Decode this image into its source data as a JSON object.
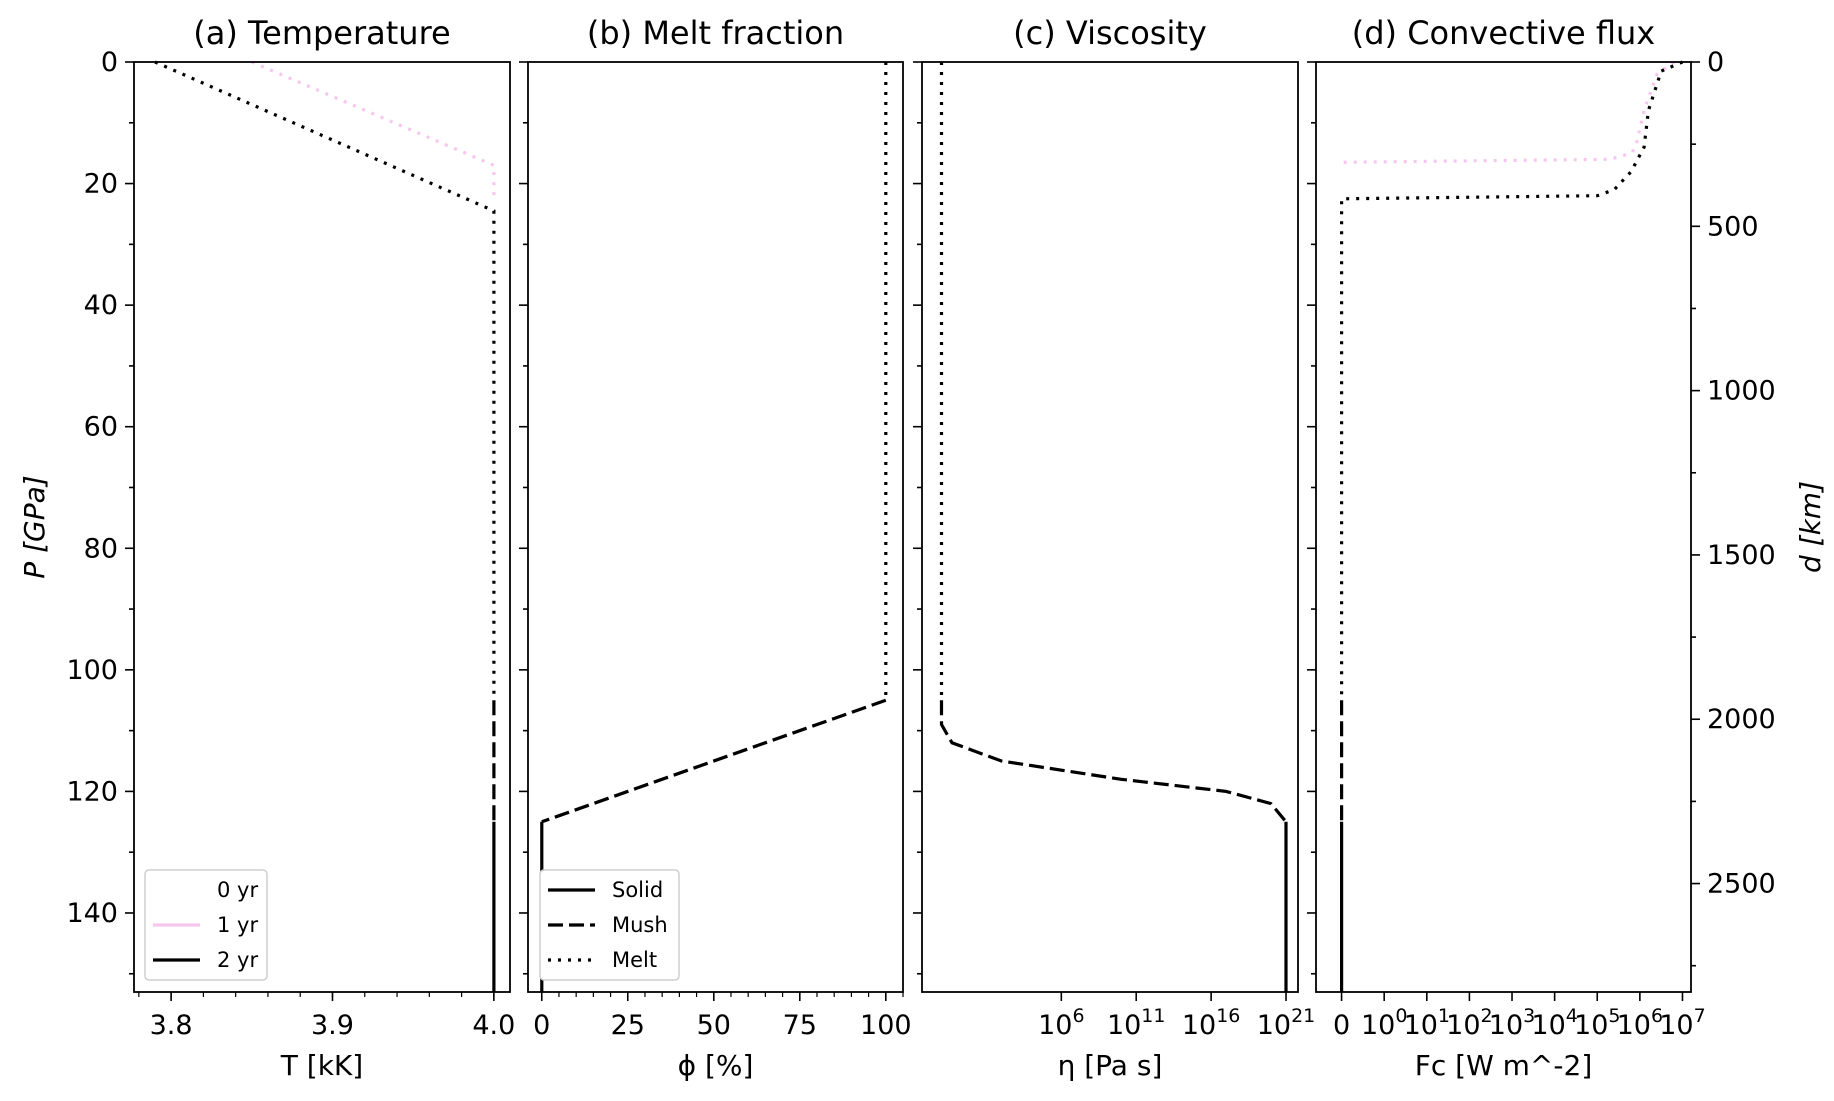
{
  "figure": {
    "left_ylabel": "P [GPa]",
    "right_ylabel": "d [km]"
  },
  "legend_time": [
    "0 yr",
    "1 yr",
    "2 yr"
  ],
  "legend_phase": [
    "Solid",
    "Mush",
    "Melt"
  ],
  "colors": {
    "t0": "#ffffff",
    "t1": "#f7c6ef",
    "t2": "#000000"
  },
  "chart_data": [
    {
      "type": "line",
      "title": "(a) Temperature",
      "xlabel": "T [kK]",
      "ylabel": "P [GPa]",
      "xlim": [
        3.777,
        4.01
      ],
      "ylim": [
        153,
        0
      ],
      "xticks": [
        3.8,
        3.9,
        4.0
      ],
      "xtick_labels": [
        "3.8",
        "3.9",
        "4.0"
      ],
      "yticks": [
        0,
        20,
        40,
        60,
        80,
        100,
        120,
        140
      ],
      "ytick_labels": [
        "0",
        "20",
        "40",
        "60",
        "80",
        "100",
        "120",
        "140"
      ],
      "legend_placement": "lower-left",
      "series": [
        {
          "name": "1 yr",
          "color": "#f7c6ef",
          "segments": [
            {
              "phase": "melt",
              "points": [
                [
                  3.85,
                  0
                ],
                [
                  4.0,
                  17
                ],
                [
                  4.0,
                  23
                ]
              ]
            }
          ]
        },
        {
          "name": "2 yr",
          "color": "#000000",
          "segments": [
            {
              "phase": "melt",
              "points": [
                [
                  3.79,
                  0
                ],
                [
                  4.0,
                  24.5
                ],
                [
                  4.0,
                  105
                ]
              ]
            },
            {
              "phase": "mush",
              "points": [
                [
                  4.0,
                  105
                ],
                [
                  4.0,
                  125
                ]
              ]
            },
            {
              "phase": "solid",
              "points": [
                [
                  4.0,
                  125
                ],
                [
                  4.0,
                  153
                ]
              ]
            }
          ]
        }
      ]
    },
    {
      "type": "line",
      "title": "(b) Melt fraction",
      "xlabel": "ϕ [%]",
      "xlim": [
        -4,
        105
      ],
      "ylim": [
        153,
        0
      ],
      "xticks": [
        0,
        25,
        50,
        75,
        100
      ],
      "xtick_labels": [
        "0",
        "25",
        "50",
        "75",
        "100"
      ],
      "legend_placement": "lower-left",
      "series": [
        {
          "name": "2 yr",
          "color": "#000000",
          "segments": [
            {
              "phase": "melt",
              "points": [
                [
                  100,
                  0
                ],
                [
                  100,
                  105
                ]
              ]
            },
            {
              "phase": "mush",
              "points": [
                [
                  100,
                  105
                ],
                [
                  0,
                  125
                ]
              ]
            },
            {
              "phase": "solid",
              "points": [
                [
                  0,
                  125
                ],
                [
                  0,
                  153
                ]
              ]
            }
          ]
        }
      ]
    },
    {
      "type": "line",
      "title": "(c) Viscosity",
      "xlabel": "η [Pa s]",
      "xscale": "log",
      "xlim": [
        -3.3,
        21.8
      ],
      "ylim": [
        153,
        0
      ],
      "xticks": [
        6,
        11,
        16,
        21
      ],
      "xtick_labels": [
        "10^6",
        "10^11",
        "10^16",
        "10^21"
      ],
      "series": [
        {
          "name": "2 yr",
          "color": "#000000",
          "segments": [
            {
              "phase": "melt",
              "points": [
                [
                  -2,
                  0
                ],
                [
                  -2,
                  105
                ]
              ]
            },
            {
              "phase": "mush",
              "points": [
                [
                  -2,
                  105
                ],
                [
                  -2,
                  109
                ],
                [
                  -1.3,
                  112
                ],
                [
                  2,
                  115
                ],
                [
                  10,
                  118
                ],
                [
                  17,
                  120
                ],
                [
                  20,
                  122
                ],
                [
                  21,
                  125
                ]
              ]
            },
            {
              "phase": "solid",
              "points": [
                [
                  21,
                  125
                ],
                [
                  21,
                  153
                ]
              ]
            }
          ]
        }
      ]
    },
    {
      "type": "line",
      "title": "(d) Convective flux",
      "xlabel": "Fc [W m^-2]",
      "xscale": "symlog",
      "xlim": [
        -0.6,
        8.2
      ],
      "ylim": [
        153,
        0
      ],
      "xticks": [
        0,
        1,
        2,
        3,
        4,
        5,
        6,
        7,
        8
      ],
      "xtick_labels": [
        "0",
        "10^0",
        "10^1",
        "10^2",
        "10^3",
        "10^4",
        "10^5",
        "10^6",
        "10^7"
      ],
      "right_yticks_km": [
        0,
        500,
        1000,
        1500,
        2000,
        2500
      ],
      "right_ylim_km": [
        0,
        2830
      ],
      "series": [
        {
          "name": "1 yr",
          "color": "#f7c6ef",
          "segments": [
            {
              "phase": "melt",
              "points": [
                [
                  7.8,
                  0
                ],
                [
                  7.4,
                  2
                ],
                [
                  7.1,
                  8
                ],
                [
                  6.9,
                  14
                ],
                [
                  6.8,
                  15
                ],
                [
                  6.3,
                  16
                ],
                [
                  0,
                  16.5
                ],
                [
                  0,
                  17
                ]
              ]
            }
          ]
        },
        {
          "name": "2 yr",
          "color": "#000000",
          "segments": [
            {
              "phase": "melt",
              "points": [
                [
                  8.0,
                  0
                ],
                [
                  7.5,
                  1.5
                ],
                [
                  7.2,
                  8
                ],
                [
                  7.1,
                  14
                ],
                [
                  6.8,
                  18
                ],
                [
                  6.4,
                  21
                ],
                [
                  6.0,
                  22
                ],
                [
                  0,
                  22.5
                ],
                [
                  0,
                  105
                ]
              ]
            },
            {
              "phase": "mush",
              "points": [
                [
                  0,
                  105
                ],
                [
                  0,
                  125
                ]
              ]
            },
            {
              "phase": "solid",
              "points": [
                [
                  0,
                  125
                ],
                [
                  0,
                  153
                ]
              ]
            }
          ]
        }
      ]
    }
  ]
}
